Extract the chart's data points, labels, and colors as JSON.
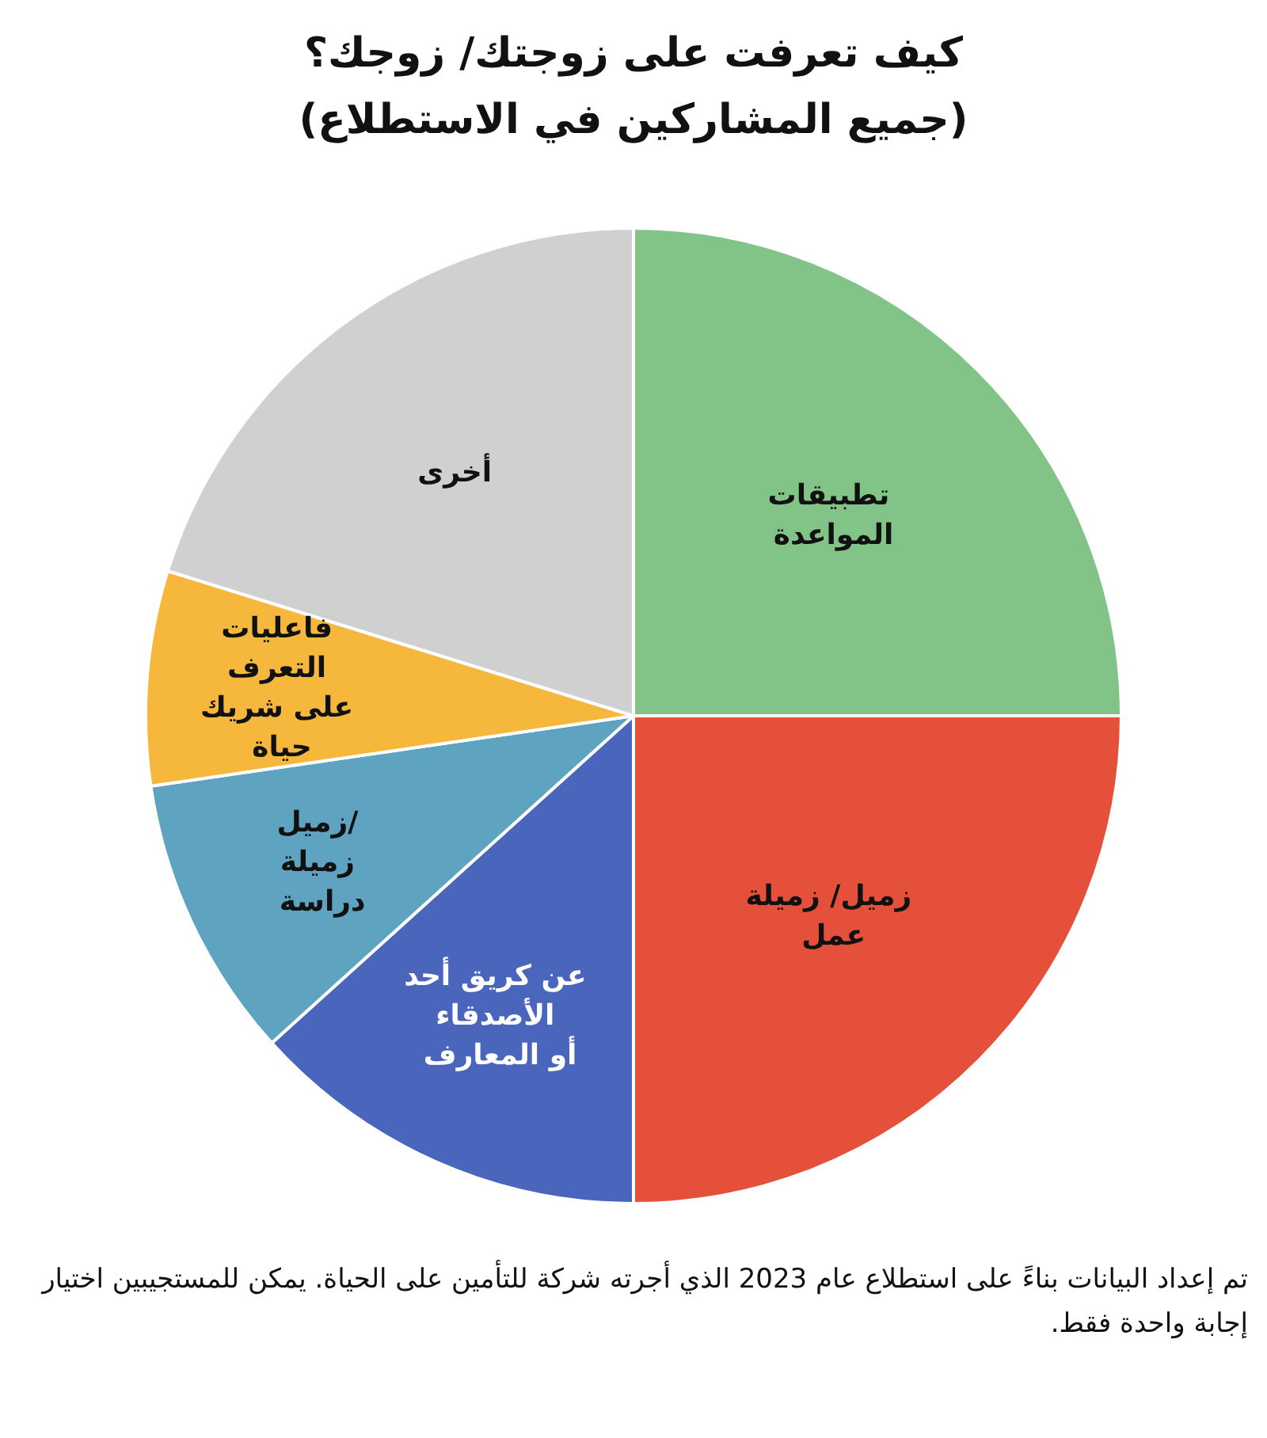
{
  "chart_data": {
    "type": "pie",
    "title": "كيف تعرفت على زوجتك/ زوجك؟",
    "subtitle": "(جميع المشاركين في الاستطلاع)",
    "categories": [
      "تطبيقات المواعدة",
      "زميل/ زميلة عمل",
      "عن كريق أحد الأصدقاء أو المعارف",
      "زميل/ زميلة دراسة",
      "فاعليات التعرف على شريك حياة",
      "أخرى"
    ],
    "values": [
      25,
      25,
      13.3,
      9.4,
      7.1,
      20.2
    ],
    "colors": [
      "#82c487",
      "#e4503a",
      "#4a66bc",
      "#5ea3bf",
      "#f5b83d",
      "#d0d0d0"
    ],
    "legend": false,
    "annotations": [
      "تم إعداد البيانات بناءً على استطلاع عام 2023 الذي أجرته شركة للتأمين على الحياة. يمكن للمستجيبين اختيار إجابة واحدة فقط."
    ]
  }
}
